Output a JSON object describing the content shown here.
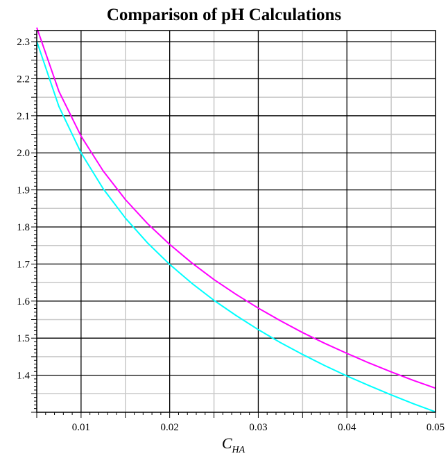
{
  "chart_data": {
    "type": "line",
    "title": "Comparison of pH Calculations",
    "xlabel": {
      "main": "C",
      "sub": "HA"
    },
    "ylabel": "",
    "xlim": [
      0.005,
      0.05
    ],
    "ylim": [
      1.3,
      2.33
    ],
    "x_ticks": [
      "0.01",
      "0.02",
      "0.03",
      "0.04",
      "0.05"
    ],
    "y_ticks": [
      "1.4",
      "1.5",
      "1.6",
      "1.7",
      "1.8",
      "1.9",
      "2.0",
      "2.1",
      "2.2",
      "2.3"
    ],
    "grid": true,
    "legend": "none",
    "series": [
      {
        "color": "#ff00ff",
        "x": [
          0.005,
          0.0075,
          0.01,
          0.0125,
          0.015,
          0.0175,
          0.02,
          0.0225,
          0.025,
          0.0275,
          0.03,
          0.0325,
          0.035,
          0.0375,
          0.04,
          0.0425,
          0.045,
          0.0475,
          0.05
        ],
        "y": [
          2.338,
          2.166,
          2.045,
          1.951,
          1.874,
          1.809,
          1.753,
          1.703,
          1.658,
          1.618,
          1.581,
          1.547,
          1.515,
          1.486,
          1.459,
          1.433,
          1.409,
          1.386,
          1.365
        ]
      },
      {
        "color": "#00ffff",
        "x": [
          0.005,
          0.0075,
          0.01,
          0.0125,
          0.015,
          0.0175,
          0.02,
          0.0225,
          0.025,
          0.0275,
          0.03,
          0.0325,
          0.035,
          0.0375,
          0.04,
          0.0425,
          0.045,
          0.0475,
          0.05
        ],
        "y": [
          2.301,
          2.125,
          2.0,
          1.903,
          1.824,
          1.757,
          1.699,
          1.648,
          1.602,
          1.561,
          1.523,
          1.488,
          1.456,
          1.426,
          1.398,
          1.372,
          1.347,
          1.323,
          1.301
        ]
      }
    ]
  }
}
